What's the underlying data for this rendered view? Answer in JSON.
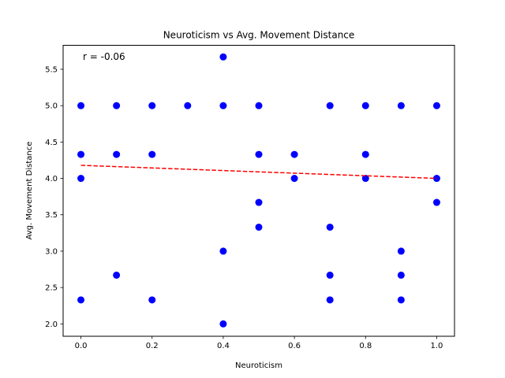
{
  "chart_data": {
    "type": "scatter",
    "title": "Neuroticism vs Avg. Movement Distance",
    "xlabel": "Neuroticism",
    "ylabel": "Avg. Movement Distance",
    "xlim": [
      -0.05,
      1.05
    ],
    "ylim": [
      1.83,
      5.83
    ],
    "xticks": [
      0.0,
      0.2,
      0.4,
      0.6,
      0.8,
      1.0
    ],
    "xtick_labels": [
      "0.0",
      "0.2",
      "0.4",
      "0.6",
      "0.8",
      "1.0"
    ],
    "yticks": [
      2.0,
      2.5,
      3.0,
      3.5,
      4.0,
      4.5,
      5.0,
      5.5
    ],
    "ytick_labels": [
      "2.0",
      "2.5",
      "3.0",
      "3.5",
      "4.0",
      "4.5",
      "5.0",
      "5.5"
    ],
    "grid": false,
    "annotation": "r = -0.06",
    "point_color": "#0000ff",
    "trend_color": "#ff0000",
    "points": [
      {
        "x": 0.0,
        "y": 5.0
      },
      {
        "x": 0.0,
        "y": 4.33
      },
      {
        "x": 0.0,
        "y": 4.0
      },
      {
        "x": 0.0,
        "y": 2.33
      },
      {
        "x": 0.1,
        "y": 5.0
      },
      {
        "x": 0.1,
        "y": 4.33
      },
      {
        "x": 0.1,
        "y": 2.67
      },
      {
        "x": 0.2,
        "y": 5.0
      },
      {
        "x": 0.2,
        "y": 4.33
      },
      {
        "x": 0.2,
        "y": 2.33
      },
      {
        "x": 0.3,
        "y": 5.0
      },
      {
        "x": 0.4,
        "y": 5.67
      },
      {
        "x": 0.4,
        "y": 5.0
      },
      {
        "x": 0.4,
        "y": 3.0
      },
      {
        "x": 0.4,
        "y": 2.0
      },
      {
        "x": 0.5,
        "y": 5.0
      },
      {
        "x": 0.5,
        "y": 4.33
      },
      {
        "x": 0.5,
        "y": 3.67
      },
      {
        "x": 0.5,
        "y": 3.33
      },
      {
        "x": 0.6,
        "y": 4.33
      },
      {
        "x": 0.6,
        "y": 4.0
      },
      {
        "x": 0.7,
        "y": 5.0
      },
      {
        "x": 0.7,
        "y": 3.33
      },
      {
        "x": 0.7,
        "y": 2.67
      },
      {
        "x": 0.7,
        "y": 2.33
      },
      {
        "x": 0.8,
        "y": 5.0
      },
      {
        "x": 0.8,
        "y": 4.33
      },
      {
        "x": 0.8,
        "y": 4.0
      },
      {
        "x": 0.9,
        "y": 5.0
      },
      {
        "x": 0.9,
        "y": 3.0
      },
      {
        "x": 0.9,
        "y": 2.67
      },
      {
        "x": 0.9,
        "y": 2.33
      },
      {
        "x": 1.0,
        "y": 5.0
      },
      {
        "x": 1.0,
        "y": 4.0
      },
      {
        "x": 1.0,
        "y": 3.67
      }
    ],
    "trend_line": {
      "x": [
        0.0,
        1.0
      ],
      "y": [
        4.18,
        4.0
      ]
    }
  }
}
